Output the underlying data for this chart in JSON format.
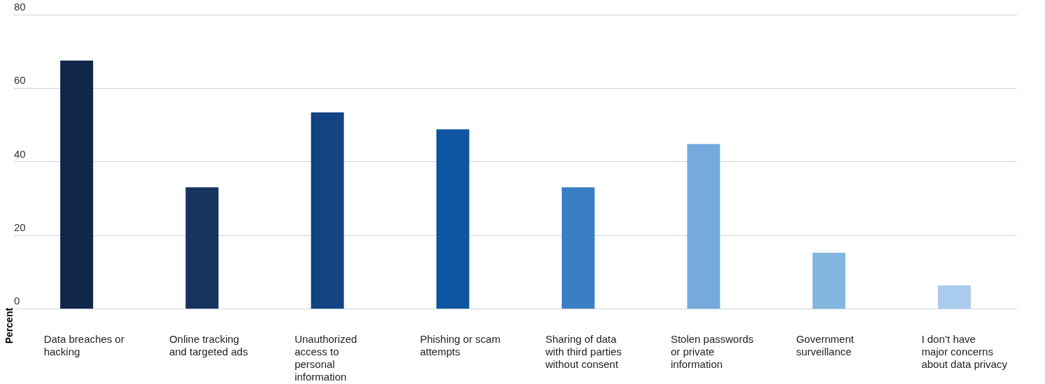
{
  "chart_data": {
    "type": "bar",
    "ylabel": "Percent",
    "categories": [
      "Data breaches or hacking",
      "Online tracking and targeted ads",
      "Unauthorized access to personal information",
      "Phishing or scam attempts",
      "Sharing of data with third parties without consent",
      "Stolen passwords or private information",
      "Government surveillance",
      "I don’t have major concerns about data privacy"
    ],
    "values": [
      67.5,
      33,
      53.4,
      48.8,
      33,
      44.8,
      15.2,
      6.3
    ],
    "colors": [
      "#10264a",
      "#14345f",
      "#124382",
      "#0e56a2",
      "#3a7fc3",
      "#75aadc",
      "#82b6de",
      "#a9cbee"
    ],
    "ylim": [
      0,
      80
    ],
    "yticks": [
      0,
      20,
      40,
      60,
      80
    ],
    "grid": "y"
  }
}
